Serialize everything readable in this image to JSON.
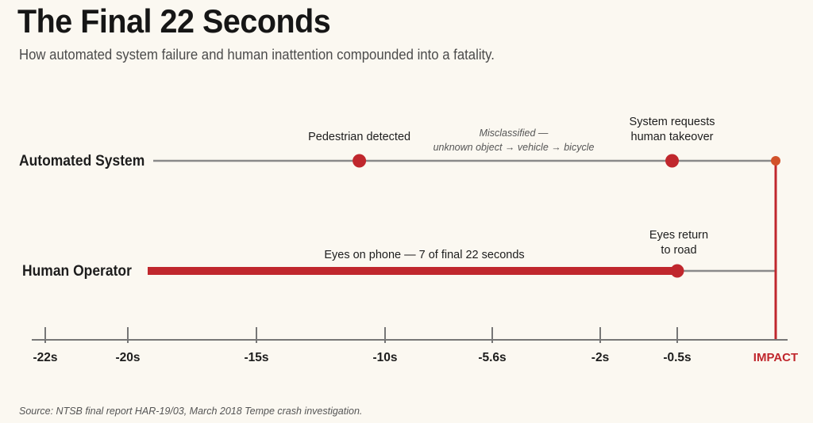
{
  "title": "The Final 22 Seconds",
  "subtitle": "How automated system failure and human inattention compounded into a fatality.",
  "source": "Source: NTSB final report HAR-19/03, March 2018 Tempe crash investigation.",
  "colors": {
    "red": "#c0272d",
    "impact_dot": "#d2522a",
    "line": "#8a8a8a",
    "text": "#1d1d1d",
    "muted": "#555555"
  },
  "lanes": {
    "system": {
      "label": "Automated System",
      "events": [
        {
          "t": -11,
          "label_lines": [
            "Pedestrian detected"
          ]
        },
        {
          "t": -0.6,
          "label_lines": [
            "System requests",
            "human takeover"
          ]
        }
      ],
      "annotation": {
        "lines": [
          "Misclassified —",
          "unknown object → vehicle → bicycle"
        ]
      },
      "start": -20,
      "end": 0
    },
    "human": {
      "label": "Human Operator",
      "inattention_start": -20,
      "inattention_end": -0.5,
      "inattention_label": "Eyes on phone — 7 of final 22 seconds",
      "event": {
        "t": -0.5,
        "label_lines": [
          "Eyes return",
          "to road"
        ]
      },
      "end": 0
    }
  },
  "axis": {
    "ticks": [
      {
        "t": -22,
        "label": "-22s"
      },
      {
        "t": -20,
        "label": "-20s"
      },
      {
        "t": -15,
        "label": "-15s"
      },
      {
        "t": -10,
        "label": "-10s"
      },
      {
        "t": -5.6,
        "label": "-5.6s"
      },
      {
        "t": -2,
        "label": "-2s"
      },
      {
        "t": -0.5,
        "label": "-0.5s"
      },
      {
        "t": 0,
        "label": "IMPACT"
      }
    ]
  }
}
